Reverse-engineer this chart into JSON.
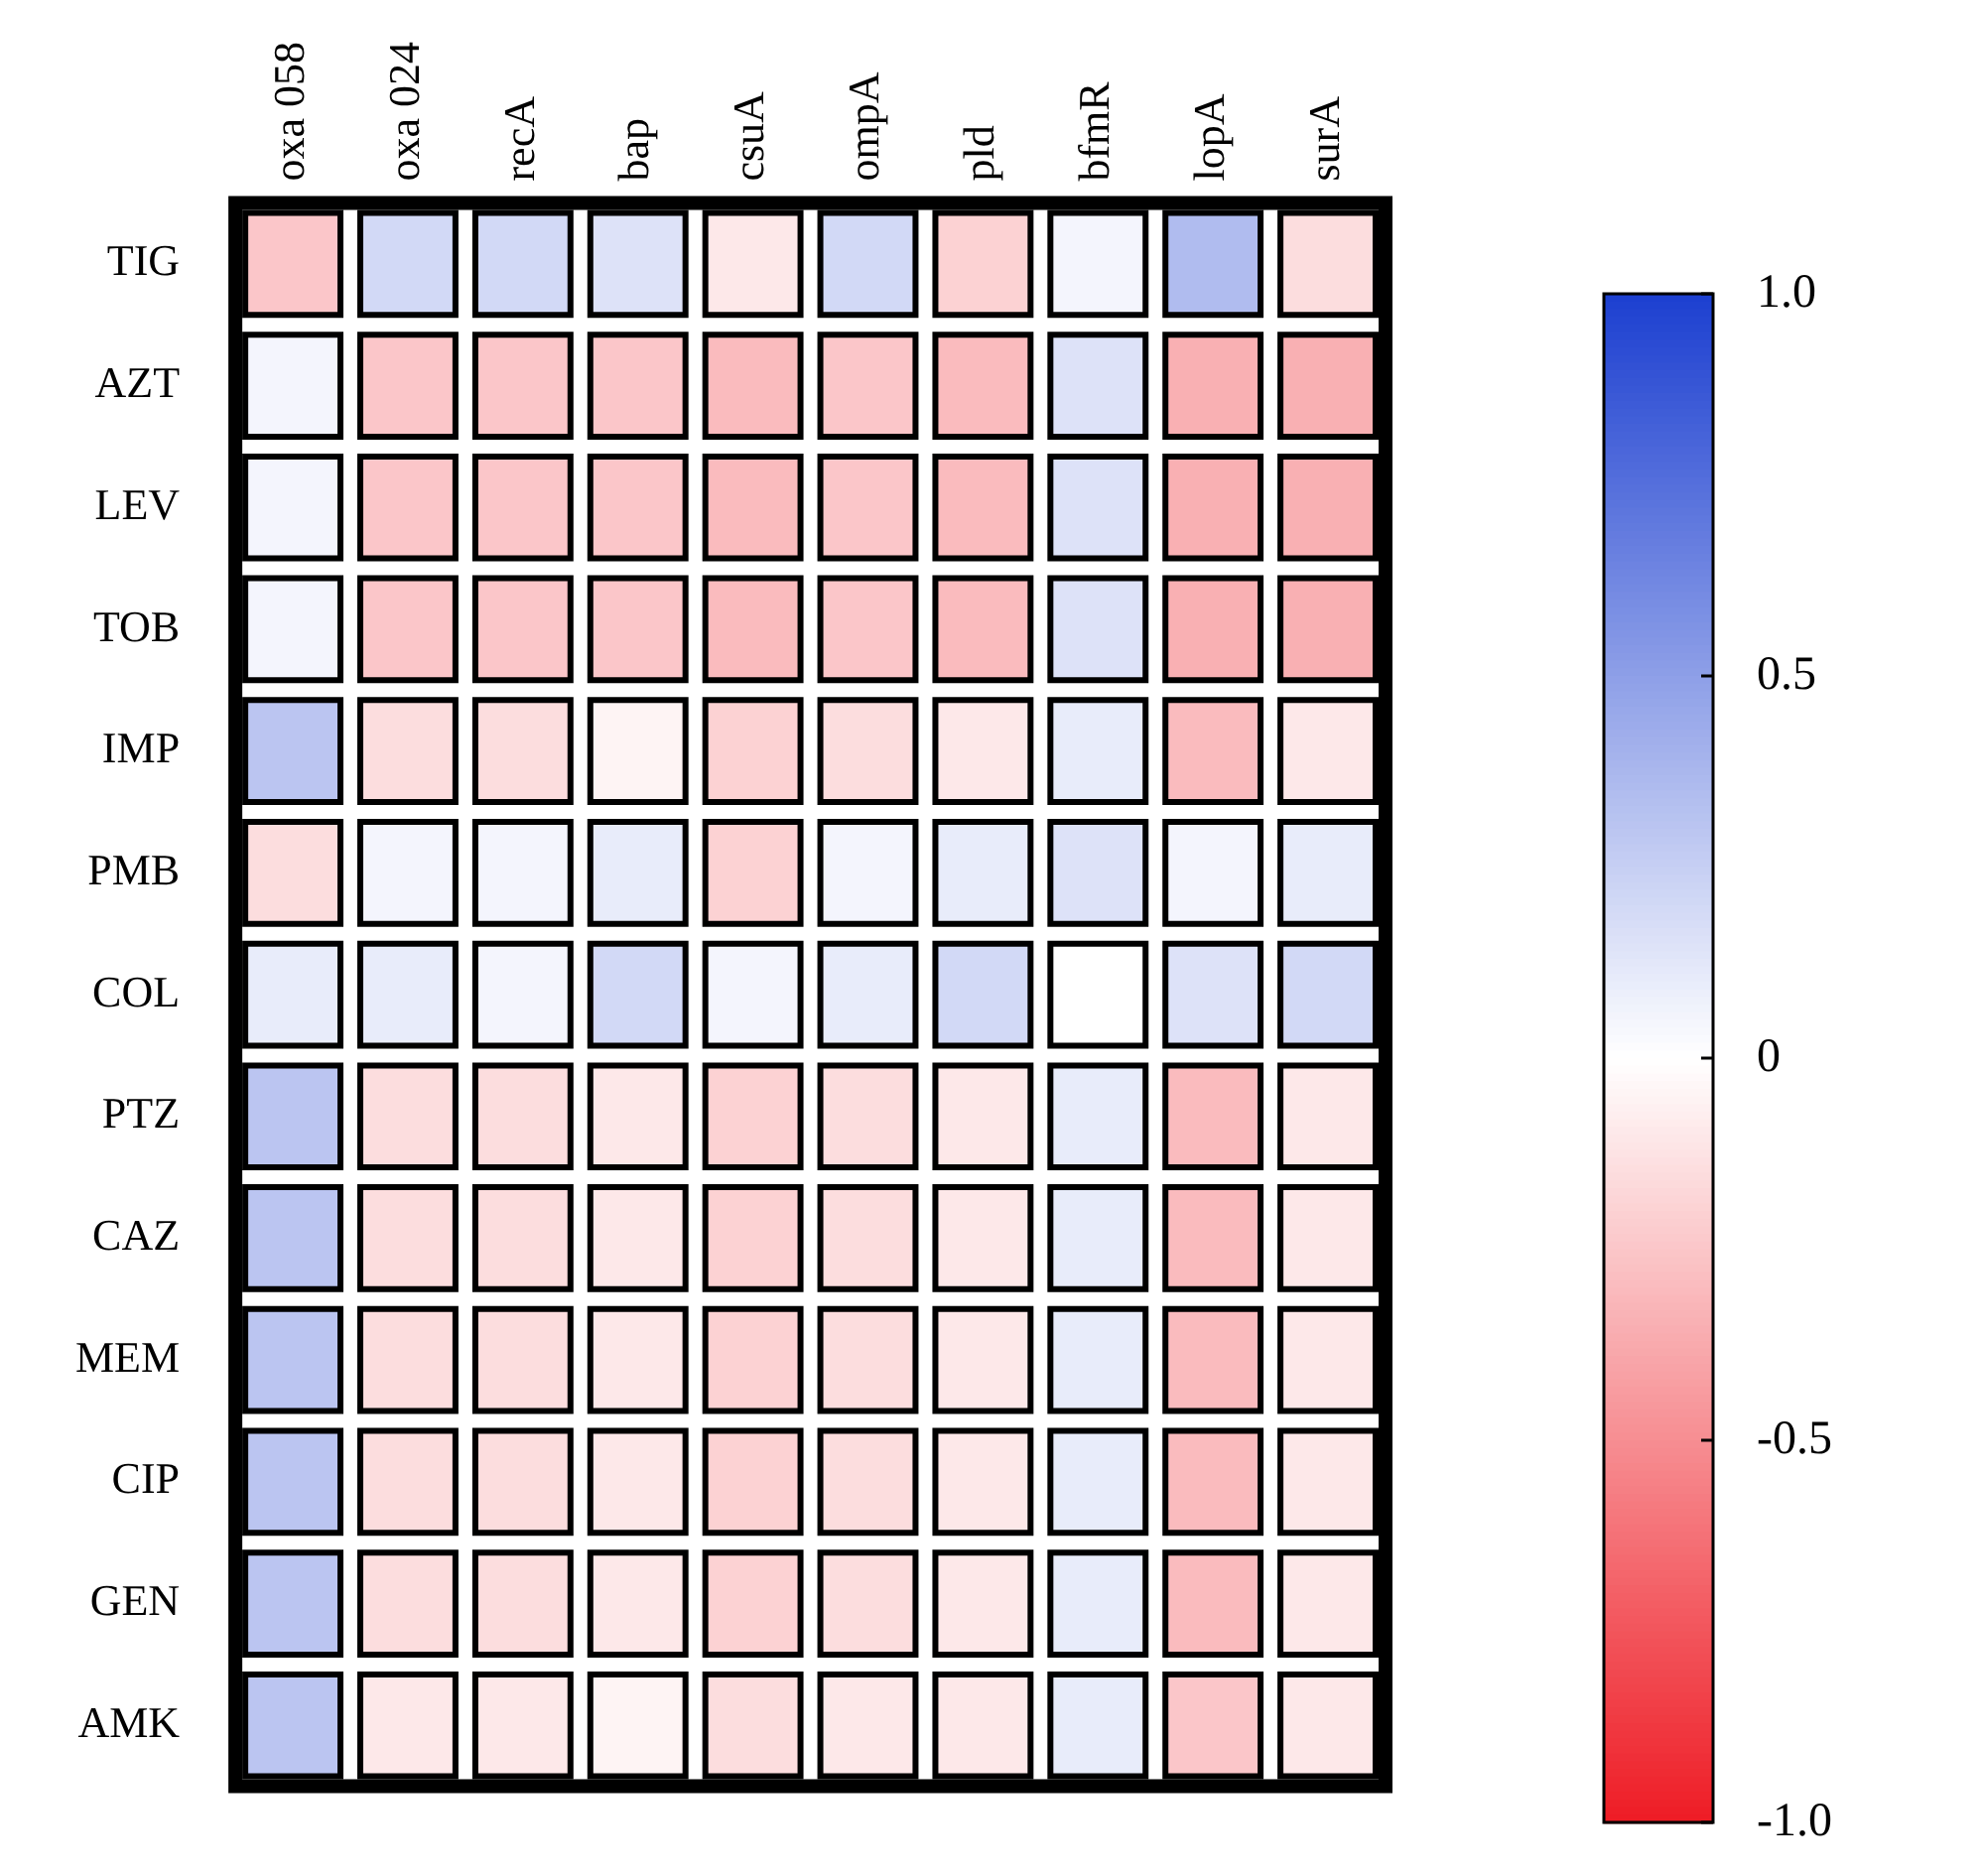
{
  "chart_data": {
    "type": "heatmap",
    "categories": [
      "oxa 058",
      "oxa 024",
      "recA",
      "bap",
      "csuA",
      "ompA",
      "pld",
      "bfmR",
      "lopA",
      "surA"
    ],
    "y_categories": [
      "TIG",
      "AZT",
      "LEV",
      "TOB",
      "IMP",
      "PMB",
      "COL",
      "PTZ",
      "CAZ",
      "MEM",
      "CIP",
      "GEN",
      "AMK"
    ],
    "cells": [
      [
        -0.25,
        0.2,
        0.2,
        0.15,
        -0.1,
        0.2,
        -0.2,
        0.05,
        0.35,
        -0.15
      ],
      [
        0.05,
        -0.25,
        -0.25,
        -0.25,
        -0.3,
        -0.25,
        -0.3,
        0.15,
        -0.35,
        -0.35
      ],
      [
        0.05,
        -0.25,
        -0.25,
        -0.25,
        -0.3,
        -0.25,
        -0.3,
        0.15,
        -0.35,
        -0.35
      ],
      [
        0.05,
        -0.25,
        -0.25,
        -0.25,
        -0.3,
        -0.25,
        -0.3,
        0.15,
        -0.35,
        -0.35
      ],
      [
        0.3,
        -0.15,
        -0.15,
        -0.05,
        -0.2,
        -0.15,
        -0.1,
        0.1,
        -0.3,
        -0.1
      ],
      [
        -0.15,
        0.05,
        0.05,
        0.1,
        -0.2,
        0.05,
        0.1,
        0.15,
        0.05,
        0.1
      ],
      [
        0.1,
        0.1,
        0.05,
        0.2,
        0.05,
        0.1,
        0.2,
        0.0,
        0.15,
        0.2
      ],
      [
        0.3,
        -0.15,
        -0.15,
        -0.1,
        -0.2,
        -0.15,
        -0.1,
        0.1,
        -0.3,
        -0.1
      ],
      [
        0.3,
        -0.15,
        -0.15,
        -0.1,
        -0.2,
        -0.15,
        -0.1,
        0.1,
        -0.3,
        -0.1
      ],
      [
        0.3,
        -0.15,
        -0.15,
        -0.1,
        -0.2,
        -0.15,
        -0.1,
        0.1,
        -0.3,
        -0.1
      ],
      [
        0.3,
        -0.15,
        -0.15,
        -0.1,
        -0.2,
        -0.15,
        -0.1,
        0.1,
        -0.3,
        -0.1
      ],
      [
        0.3,
        -0.15,
        -0.15,
        -0.1,
        -0.2,
        -0.15,
        -0.1,
        0.1,
        -0.3,
        -0.1
      ],
      [
        0.3,
        -0.1,
        -0.1,
        -0.05,
        -0.15,
        -0.1,
        -0.1,
        0.1,
        -0.25,
        -0.1
      ]
    ],
    "clim": [
      -1,
      1
    ],
    "cticks": [
      {
        "value": 1,
        "label": "1.0"
      },
      {
        "value": 0.5,
        "label": "0.5"
      },
      {
        "value": 0,
        "label": "0"
      },
      {
        "value": -0.5,
        "label": "-0.5"
      },
      {
        "value": -1,
        "label": "-1.0"
      }
    ]
  }
}
